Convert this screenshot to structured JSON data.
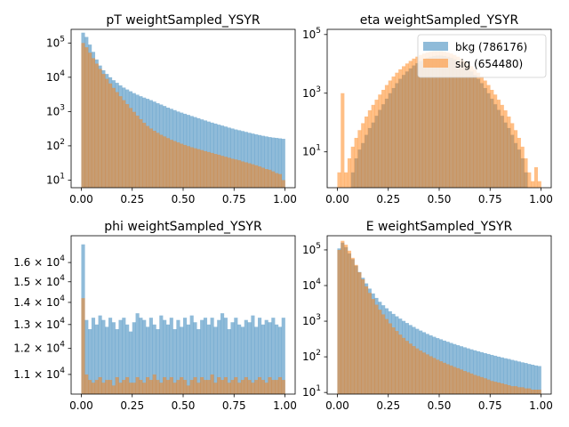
{
  "chart_data": [
    {
      "type": "histogram",
      "title": "pT weightSampled_YSYR",
      "yscale": "log",
      "xlim": [
        -0.05,
        1.05
      ],
      "ylim": [
        6,
        250000
      ],
      "xticks": [
        0,
        0.25,
        0.5,
        0.75,
        1
      ],
      "xtick_labels": [
        "0.00",
        "0.25",
        "0.50",
        "0.75",
        "1.00"
      ],
      "yticks": [
        10,
        100,
        1000,
        10000,
        100000
      ],
      "ytick_labels": [
        {
          "base": "10",
          "exp": "1"
        },
        {
          "base": "10",
          "exp": "2"
        },
        {
          "base": "10",
          "exp": "3"
        },
        {
          "base": "10",
          "exp": "4"
        },
        {
          "base": "10",
          "exp": "5"
        }
      ],
      "bins": 60,
      "series": [
        {
          "key": "bkg",
          "color": "#1f77b4",
          "values": [
            200000,
            150000,
            90000,
            55000,
            33000,
            22000,
            16000,
            12500,
            10000,
            8200,
            6900,
            5800,
            5000,
            4400,
            3900,
            3450,
            3100,
            2800,
            2550,
            2350,
            2150,
            1950,
            1750,
            1600,
            1450,
            1300,
            1200,
            1100,
            1000,
            930,
            860,
            800,
            740,
            690,
            640,
            590,
            550,
            510,
            475,
            445,
            415,
            390,
            365,
            340,
            320,
            300,
            285,
            270,
            255,
            240,
            228,
            216,
            206,
            196,
            188,
            180,
            174,
            170,
            165,
            160
          ]
        },
        {
          "key": "sig",
          "color": "#ff7f0e",
          "values": [
            100000,
            75000,
            52000,
            36000,
            25000,
            17500,
            12500,
            9000,
            6600,
            4900,
            3700,
            2800,
            2150,
            1650,
            1270,
            980,
            760,
            600,
            470,
            380,
            320,
            275,
            240,
            210,
            188,
            168,
            150,
            138,
            126,
            115,
            106,
            98,
            91,
            85,
            80,
            75,
            70,
            66,
            62,
            58,
            55,
            51,
            48,
            45,
            42,
            40,
            38,
            35,
            33,
            31,
            29,
            27,
            25,
            23,
            21,
            20,
            18,
            16,
            15,
            10
          ]
        }
      ]
    },
    {
      "type": "histogram",
      "title": "eta weightSampled_YSYR",
      "yscale": "log",
      "xlim": [
        -0.05,
        1.05
      ],
      "ylim": [
        0.6,
        150000
      ],
      "xticks": [
        0,
        0.25,
        0.5,
        0.75,
        1
      ],
      "xtick_labels": [
        "0.00",
        "0.25",
        "0.50",
        "0.75",
        "1.00"
      ],
      "yticks": [
        10,
        1000,
        100000
      ],
      "ytick_labels": [
        {
          "base": "10",
          "exp": "1"
        },
        {
          "base": "10",
          "exp": "3"
        },
        {
          "base": "10",
          "exp": "5"
        }
      ],
      "bins": 60,
      "legend": {
        "placement": "top-right",
        "entries": [
          {
            "key": "bkg",
            "label": "bkg (786176)"
          },
          {
            "key": "sig",
            "label": "sig (654480)"
          }
        ]
      },
      "series": [
        {
          "key": "bkg",
          "color": "#1f77b4",
          "values": [
            0,
            0,
            0,
            0,
            2,
            6,
            12,
            20,
            38,
            65,
            100,
            170,
            270,
            420,
            650,
            1000,
            1500,
            2200,
            3100,
            4200,
            5500,
            7000,
            8800,
            10500,
            12500,
            14500,
            16200,
            17600,
            18600,
            19200,
            19200,
            18600,
            17600,
            16200,
            14500,
            12500,
            10500,
            8800,
            7000,
            5500,
            4200,
            3100,
            2200,
            1500,
            1000,
            650,
            420,
            270,
            170,
            100,
            65,
            38,
            20,
            12,
            6,
            2,
            0,
            0,
            0,
            0
          ]
        },
        {
          "key": "sig",
          "color": "#ff7f0e",
          "values": [
            2,
            1000,
            2,
            6,
            15,
            30,
            55,
            95,
            160,
            260,
            400,
            600,
            900,
            1300,
            1900,
            2700,
            3700,
            5000,
            6500,
            8300,
            10300,
            12600,
            15100,
            17600,
            20200,
            22600,
            24500,
            26000,
            26800,
            27000,
            26800,
            26000,
            24500,
            22600,
            20200,
            17600,
            15100,
            12600,
            10300,
            8300,
            6500,
            5000,
            3700,
            2700,
            1900,
            1300,
            900,
            600,
            400,
            260,
            160,
            95,
            55,
            30,
            15,
            6,
            2,
            1,
            3,
            1
          ]
        }
      ]
    },
    {
      "type": "histogram",
      "title": "phi weightSampled_YSYR",
      "yscale": "log",
      "xlim": [
        -0.05,
        1.05
      ],
      "ylim": [
        10300,
        17500
      ],
      "xticks": [
        0,
        0.25,
        0.5,
        0.75,
        1
      ],
      "xtick_labels": [
        "0.00",
        "0.25",
        "0.50",
        "0.75",
        "1.00"
      ],
      "yticks": [
        11000,
        12000,
        13000,
        14000,
        15000,
        16000
      ],
      "ytick_labels": [
        {
          "base": "1.1 × 10",
          "exp": "4"
        },
        {
          "base": "1.2 × 10",
          "exp": "4"
        },
        {
          "base": "1.3 × 10",
          "exp": "4"
        },
        {
          "base": "1.4 × 10",
          "exp": "4"
        },
        {
          "base": "1.5 × 10",
          "exp": "4"
        },
        {
          "base": "1.6 × 10",
          "exp": "4"
        }
      ],
      "bins": 60,
      "series": [
        {
          "key": "bkg",
          "color": "#1f77b4",
          "values": [
            17000,
            13200,
            12800,
            13300,
            13000,
            13400,
            13200,
            12900,
            13300,
            13100,
            12800,
            13200,
            13300,
            13000,
            12700,
            13100,
            13500,
            13300,
            13200,
            12900,
            13300,
            13000,
            12800,
            13400,
            13200,
            13000,
            13300,
            12800,
            13200,
            12900,
            13300,
            13000,
            13400,
            13100,
            12800,
            13200,
            13300,
            13000,
            13300,
            12900,
            13200,
            13500,
            13300,
            12800,
            13100,
            13300,
            13000,
            12900,
            13200,
            13100,
            13400,
            12900,
            13300,
            13000,
            13200,
            13100,
            13300,
            13000,
            12900,
            13300
          ]
        },
        {
          "key": "sig",
          "color": "#ff7f0e",
          "values": [
            14200,
            11000,
            10800,
            10700,
            10800,
            10900,
            10700,
            10800,
            10800,
            10600,
            10900,
            10700,
            10800,
            10900,
            10700,
            10700,
            10900,
            10800,
            10700,
            10900,
            10800,
            11000,
            10800,
            10700,
            10900,
            10800,
            10900,
            10700,
            10800,
            10900,
            10800,
            10600,
            10800,
            10900,
            10700,
            10900,
            10800,
            10800,
            11000,
            10700,
            10900,
            10800,
            10900,
            10700,
            10800,
            10900,
            10700,
            10800,
            10900,
            10800,
            10700,
            10800,
            10900,
            10800,
            10700,
            10900,
            10800,
            10800,
            10900,
            10800
          ]
        }
      ]
    },
    {
      "type": "histogram",
      "title": "E weightSampled_YSYR",
      "yscale": "log",
      "xlim": [
        -0.05,
        1.05
      ],
      "ylim": [
        9,
        250000
      ],
      "xticks": [
        0,
        0.25,
        0.5,
        0.75,
        1
      ],
      "xtick_labels": [
        "0.00",
        "0.25",
        "0.50",
        "0.75",
        "1.00"
      ],
      "yticks": [
        10,
        100,
        1000,
        10000,
        100000
      ],
      "ytick_labels": [
        {
          "base": "10",
          "exp": "1"
        },
        {
          "base": "10",
          "exp": "2"
        },
        {
          "base": "10",
          "exp": "3"
        },
        {
          "base": "10",
          "exp": "4"
        },
        {
          "base": "10",
          "exp": "5"
        }
      ],
      "bins": 60,
      "series": [
        {
          "key": "bkg",
          "color": "#1f77b4",
          "values": [
            110000,
            160000,
            120000,
            80000,
            55000,
            36000,
            24000,
            16500,
            11500,
            8200,
            6000,
            4500,
            3500,
            2800,
            2300,
            1900,
            1600,
            1370,
            1180,
            1020,
            890,
            780,
            690,
            610,
            545,
            490,
            440,
            400,
            365,
            335,
            310,
            285,
            265,
            245,
            228,
            212,
            198,
            185,
            173,
            162,
            152,
            143,
            135,
            127,
            120,
            113,
            107,
            101,
            96,
            91,
            87,
            82,
            78,
            74,
            70,
            67,
            63,
            60,
            57,
            55
          ]
        },
        {
          "key": "sig",
          "color": "#ff7f0e",
          "values": [
            100000,
            180000,
            140000,
            95000,
            60000,
            38000,
            23500,
            15000,
            9500,
            6200,
            4200,
            2900,
            2100,
            1550,
            1150,
            870,
            670,
            530,
            420,
            340,
            280,
            235,
            200,
            172,
            150,
            132,
            117,
            104,
            93,
            83,
            75,
            68,
            62,
            57,
            52,
            48,
            44,
            40,
            37,
            34,
            31,
            29,
            27,
            25,
            23,
            21,
            20,
            19,
            18,
            17,
            16,
            15,
            15,
            14,
            14,
            13,
            13,
            12,
            12,
            12
          ]
        }
      ]
    }
  ]
}
